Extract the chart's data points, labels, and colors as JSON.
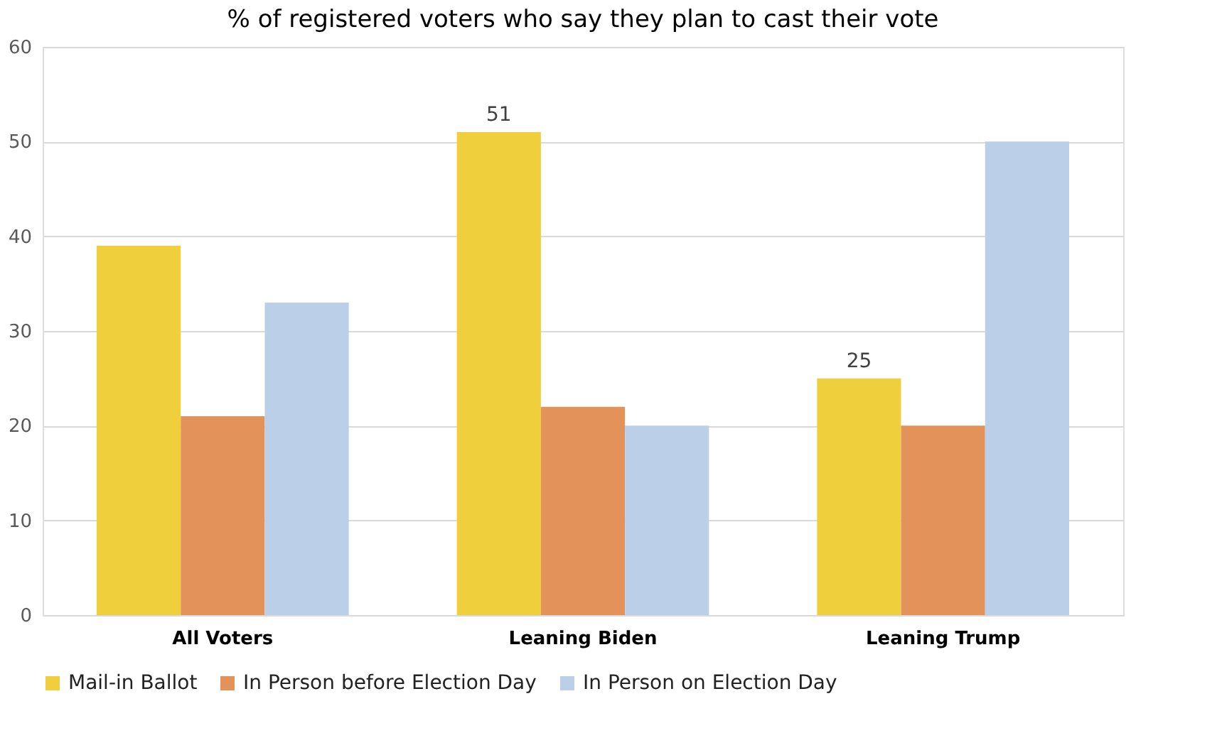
{
  "chart_data": {
    "type": "bar",
    "title": "% of registered voters who say they plan to cast their vote",
    "categories": [
      "All Voters",
      "Leaning Biden",
      "Leaning Trump"
    ],
    "series": [
      {
        "name": "Mail-in Ballot",
        "color": "#f0cf3c",
        "values": [
          39,
          51,
          25
        ],
        "value_labels": [
          null,
          "51",
          "25"
        ]
      },
      {
        "name": "In Person before Election Day",
        "color": "#e3935a",
        "values": [
          21,
          22,
          20
        ]
      },
      {
        "name": "In Person on Election Day",
        "color": "#bccfe8",
        "values": [
          33,
          20,
          50
        ]
      }
    ],
    "ylim": [
      0,
      60
    ],
    "yticks": [
      0,
      10,
      20,
      30,
      40,
      50,
      60
    ],
    "grid": "y",
    "legend": "bottom"
  }
}
